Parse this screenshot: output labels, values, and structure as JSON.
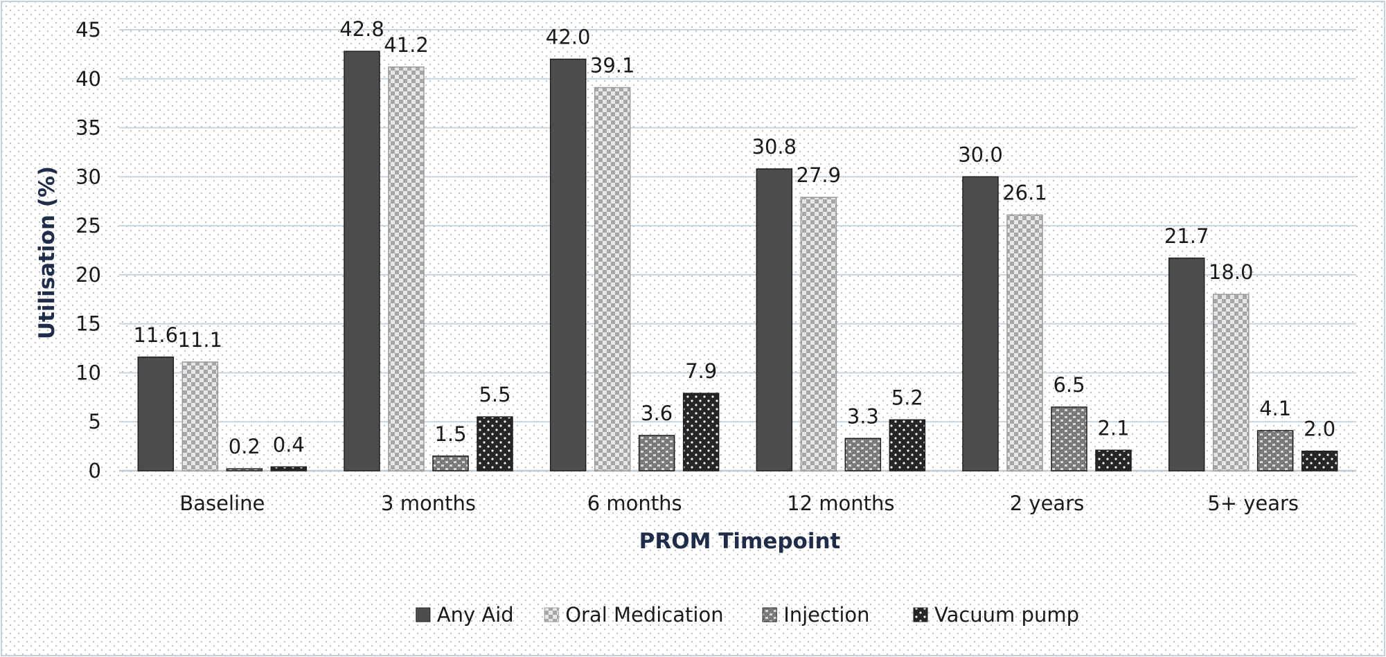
{
  "chart_data": {
    "type": "bar",
    "title": "",
    "xlabel": "PROM Timepoint",
    "ylabel": "Utilisation (%)",
    "ylim": [
      0,
      45
    ],
    "yticks": [
      "0",
      "5",
      "10",
      "15",
      "20",
      "25",
      "30",
      "35",
      "40",
      "45"
    ],
    "grid": "horizontal",
    "legend_position": "bottom",
    "categories": [
      "Baseline",
      "3 months",
      "6 months",
      "12 months",
      "2 years",
      "5+ years"
    ],
    "series": [
      {
        "name": "Any Aid",
        "values": [
          11.6,
          42.8,
          42.0,
          30.8,
          30.0,
          21.7
        ],
        "labels": [
          "11.6",
          "42.8",
          "42.0",
          "30.8",
          "30.0",
          "21.7"
        ],
        "pattern": "solid"
      },
      {
        "name": "Oral Medication",
        "values": [
          11.1,
          41.2,
          39.1,
          27.9,
          26.1,
          18.0
        ],
        "labels": [
          "11.1",
          "41.2",
          "39.1",
          "27.9",
          "26.1",
          "18.0"
        ],
        "pattern": "checker"
      },
      {
        "name": "Injection",
        "values": [
          0.2,
          1.5,
          3.6,
          3.3,
          6.5,
          4.1
        ],
        "labels": [
          "0.2",
          "1.5",
          "3.6",
          "3.3",
          "6.5",
          "4.1"
        ],
        "pattern": "bricks"
      },
      {
        "name": "Vacuum pump",
        "values": [
          0.4,
          5.5,
          7.9,
          5.2,
          2.1,
          2.0
        ],
        "labels": [
          "0.4",
          "5.5",
          "7.9",
          "5.2",
          "2.1",
          "2.0"
        ],
        "pattern": "dots"
      }
    ],
    "colors": {
      "any_aid": "#4d4d4d",
      "oral_medication_light": "#e6e6e6",
      "oral_medication_dark": "#a6a6a6",
      "injection_bg": "#7a7a7a",
      "injection_fg": "#d9d9d9",
      "vacuum_bg": "#262626",
      "vacuum_fg": "#f2f2f2",
      "gridline": "#c9d3dc",
      "axis_title": "#1f2d4a",
      "background_dots": "#b8b8b8"
    }
  }
}
